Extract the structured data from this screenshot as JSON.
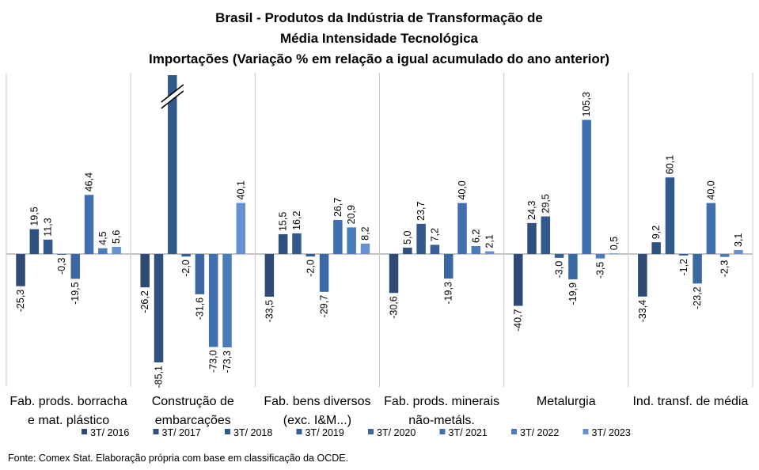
{
  "chart_data": {
    "type": "bar",
    "title_lines": [
      "Brasil - Produtos da Indústria de Transformação de",
      "Média Intensidade Tecnológica",
      "Importações (Variação % em relação a igual acumulado do ano anterior)"
    ],
    "categories": [
      [
        "Fab. prods. borracha",
        "e mat. plástico"
      ],
      [
        "Construção de",
        "embarcações"
      ],
      [
        "Fab. bens diversos",
        "(exc. I&M...)"
      ],
      [
        "Fab. prods. minerais",
        "não-metáls."
      ],
      [
        "Metalurgia"
      ],
      [
        "Ind. transf. de média"
      ]
    ],
    "series": [
      {
        "name": "3T/ 2016",
        "color": "#2e4a75",
        "values": [
          -25.3,
          -26.2,
          -33.5,
          -30.6,
          -40.7,
          -33.4
        ],
        "labels": [
          "-25,3",
          "-26,2",
          "-33,5",
          "-30,6",
          "-40,7",
          "-33,4"
        ]
      },
      {
        "name": "3T/ 2017",
        "color": "#2f5180",
        "values": [
          19.5,
          -85.1,
          15.5,
          5.0,
          24.3,
          9.2
        ],
        "labels": [
          "19,5",
          "-85,1",
          "15,5",
          "5,0",
          "24,3",
          "9,2"
        ]
      },
      {
        "name": "3T/ 2018",
        "color": "#32598c",
        "values": [
          11.3,
          139.0,
          16.2,
          23.7,
          29.5,
          60.1
        ],
        "labels": [
          "11,3",
          "",
          "16,2",
          "23,7",
          "29,5",
          "60,1"
        ],
        "broken": [
          false,
          true,
          false,
          false,
          false,
          false
        ]
      },
      {
        "name": "3T/ 2019",
        "color": "#365f96",
        "values": [
          -0.3,
          -2.0,
          -2.0,
          7.2,
          -3.0,
          -1.2
        ],
        "labels": [
          "-0,3",
          "-2,0",
          "-2,0",
          "7,2",
          "-3,0",
          "-1,2"
        ]
      },
      {
        "name": "3T/ 2020",
        "color": "#3b67a3",
        "values": [
          -19.5,
          -31.6,
          -29.7,
          -19.3,
          -19.9,
          -23.2
        ],
        "labels": [
          "-19,5",
          "-31,6",
          "-29,7",
          "-19,3",
          "-19,9",
          "-23,2"
        ]
      },
      {
        "name": "3T/ 2021",
        "color": "#416fae",
        "values": [
          46.4,
          -73.0,
          26.7,
          40.0,
          105.3,
          40.0
        ],
        "labels": [
          "46,4",
          "-73,0",
          "26,7",
          "40,0",
          "105,3",
          "40,0"
        ]
      },
      {
        "name": "3T/ 2022",
        "color": "#4a7bbb",
        "values": [
          4.5,
          -73.3,
          20.9,
          6.2,
          -3.5,
          -2.3
        ],
        "labels": [
          "4,5",
          "-73,3",
          "20,9",
          "6,2",
          "-3,5",
          "-2,3"
        ]
      },
      {
        "name": "3T/ 2023",
        "color": "#6791cc",
        "values": [
          5.6,
          40.1,
          8.2,
          2.1,
          0.5,
          3.1
        ],
        "labels": [
          "5,6",
          "40,1",
          "8,2",
          "2,1",
          "0,5",
          "3,1"
        ]
      }
    ],
    "ylim": [
      -85.1,
      139.0
    ],
    "grid": false,
    "legend_position": "bottom",
    "xlabel": "",
    "ylabel": ""
  },
  "source": "Fonte: Comex Stat. Elaboração própria com base em classificação da OCDE."
}
